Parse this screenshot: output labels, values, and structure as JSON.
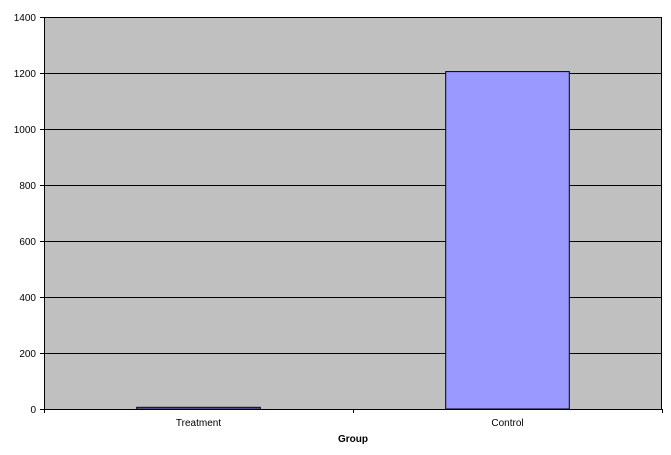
{
  "colors": {
    "plot_background": "#c0c0c0",
    "bar_fill": "#9999ff",
    "bar_stroke": "#000000",
    "gridline": "#000000",
    "axis": "#000000"
  },
  "chart_data": {
    "type": "bar",
    "categories": [
      "Treatment",
      "Control"
    ],
    "values": [
      6,
      1205
    ],
    "xlabel": "Group",
    "ylabel": "",
    "ylim": [
      0,
      1400
    ],
    "y_ticks": [
      0,
      200,
      400,
      600,
      800,
      1000,
      1200,
      1400
    ],
    "grid": true,
    "legend": "none"
  }
}
